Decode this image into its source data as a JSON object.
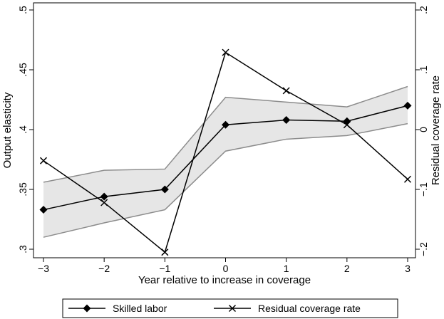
{
  "chart_data": {
    "type": "line",
    "x": [
      -3,
      -2,
      -1,
      0,
      1,
      2,
      3
    ],
    "xlabel": "Year relative to increase in coverage",
    "xlim": [
      -3,
      3
    ],
    "x_ticks": [
      "−3",
      "−2",
      "−1",
      "0",
      "1",
      "2",
      "3"
    ],
    "ylabel": "Output elasticity",
    "ylim": [
      0.3,
      0.5
    ],
    "y_ticks": [
      {
        "value": 0.3,
        "label": ".3"
      },
      {
        "value": 0.35,
        "label": ".35"
      },
      {
        "value": 0.4,
        "label": ".4"
      },
      {
        "value": 0.45,
        "label": ".45"
      },
      {
        "value": 0.5,
        "label": ".5"
      }
    ],
    "y2label": "Residual coverage rate",
    "y2lim": [
      -0.2,
      0.2
    ],
    "y2_ticks": [
      {
        "value": -0.2,
        "label": "−.2"
      },
      {
        "value": -0.1,
        "label": "−.1"
      },
      {
        "value": 0,
        "label": "0"
      },
      {
        "value": 0.1,
        "label": ".1"
      },
      {
        "value": 0.2,
        "label": ".2"
      }
    ],
    "band": {
      "upper": [
        0.356,
        0.366,
        0.367,
        0.427,
        0.423,
        0.419,
        0.436
      ],
      "lower": [
        0.31,
        0.322,
        0.333,
        0.382,
        0.392,
        0.395,
        0.405
      ]
    },
    "series": [
      {
        "name": "Skilled labor",
        "axis": "left",
        "marker": "diamond",
        "values": [
          0.333,
          0.344,
          0.35,
          0.404,
          0.408,
          0.407,
          0.42
        ]
      },
      {
        "name": "Residual coverage rate",
        "axis": "right",
        "marker": "x",
        "values": [
          -0.052,
          -0.122,
          -0.205,
          0.129,
          0.065,
          0.008,
          -0.083
        ]
      }
    ],
    "legend": "bottom",
    "grid": false,
    "colors": {
      "band_fill": "#e6e6e6",
      "band_edge": "#8c8c8c",
      "line": "#000000"
    }
  }
}
